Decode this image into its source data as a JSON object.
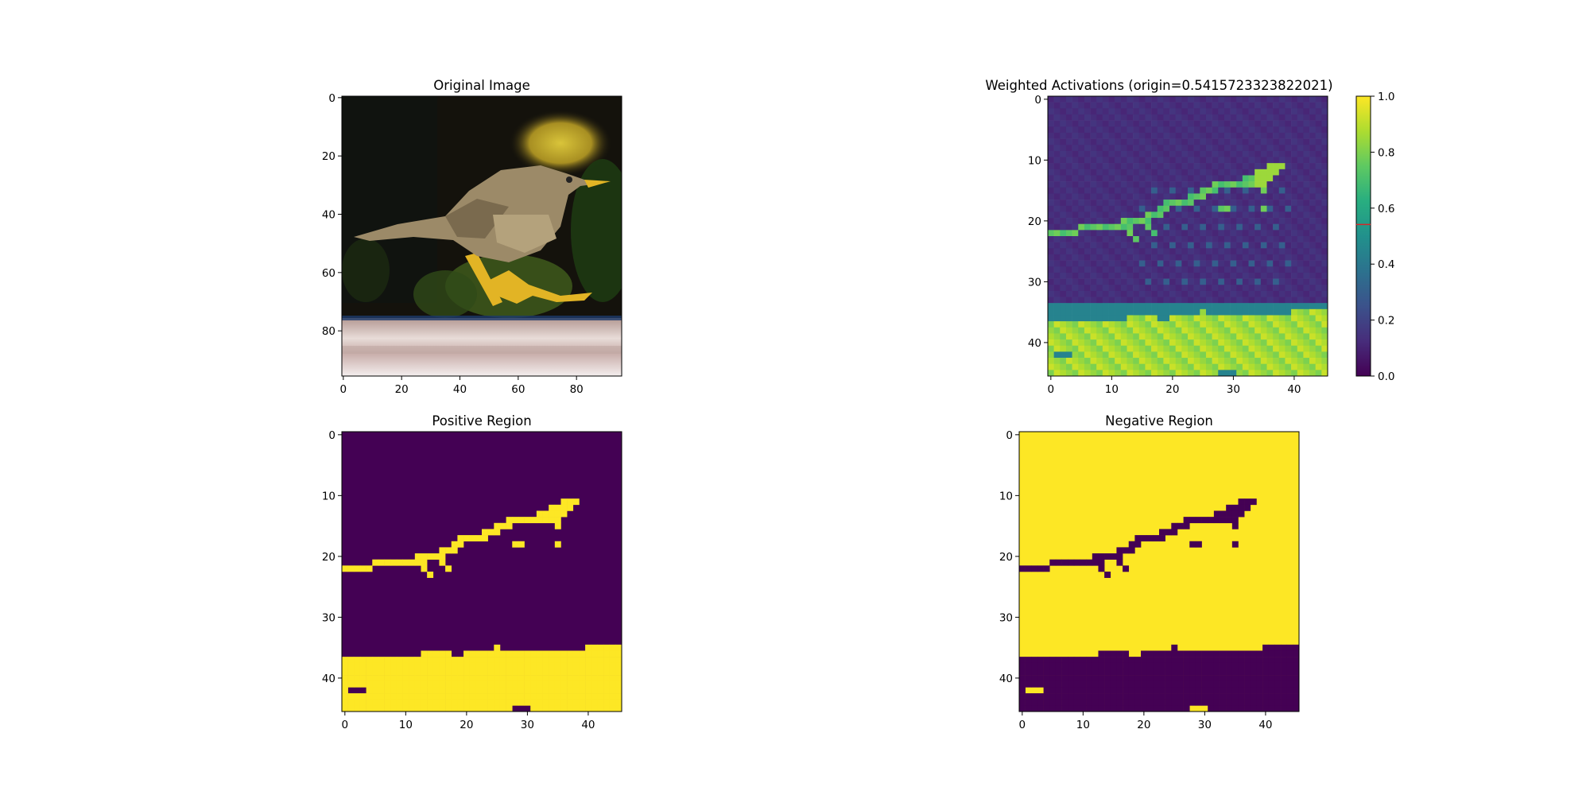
{
  "chart_data": [
    {
      "type": "image",
      "title": "Original Image",
      "xticks": [
        0,
        20,
        40,
        60,
        80
      ],
      "yticks": [
        0,
        20,
        40,
        60,
        80
      ],
      "xlim": [
        -0.5,
        95.5
      ],
      "ylim": [
        95.5,
        -0.5
      ],
      "colors": {
        "background": "#14120c",
        "bokeh": "#c8b42e",
        "foliage": "#3e5a1c",
        "bird": "#9c8a68",
        "legs": "#e2b425",
        "ledge": "#dac9c4"
      }
    },
    {
      "type": "heatmap",
      "title": "Weighted Activations (origin=0.5415723323822021)",
      "xticks": [
        0,
        10,
        20,
        30,
        40
      ],
      "yticks": [
        0,
        10,
        20,
        30,
        40
      ],
      "xlim": [
        -0.5,
        45.5
      ],
      "ylim": [
        45.5,
        -0.5
      ],
      "colormap": "viridis",
      "colorbar": {
        "ticks": [
          "0.0",
          "0.2",
          "0.4",
          "0.6",
          "0.8",
          "1.0"
        ],
        "range": [
          0,
          1
        ],
        "marker_value": 0.5415723323822021,
        "marker_color": "#d62728"
      },
      "levels": {
        "background": 0.13,
        "bird_edge": 0.7,
        "bird_head": 0.85,
        "ledge": 0.92
      }
    },
    {
      "type": "heatmap",
      "title": "Positive Region",
      "xticks": [
        0,
        10,
        20,
        30,
        40
      ],
      "yticks": [
        0,
        10,
        20,
        30,
        40
      ],
      "xlim": [
        -0.5,
        45.5
      ],
      "ylim": [
        45.5,
        -0.5
      ],
      "colors": {
        "off": "#440154",
        "on": "#fde725"
      },
      "ledge_top_row": [
        37,
        37,
        37,
        37,
        37,
        37,
        37,
        37,
        37,
        37,
        37,
        37,
        37,
        36,
        36,
        36,
        36,
        36,
        37,
        37,
        36,
        36,
        36,
        36,
        36,
        35,
        36,
        36,
        36,
        36,
        36,
        36,
        36,
        36,
        36,
        36,
        36,
        36,
        36,
        36,
        35,
        35,
        35,
        35,
        35,
        35
      ],
      "line_segments": [
        [
          22,
          0,
          4
        ],
        [
          21,
          5,
          12
        ],
        [
          20,
          12,
          16
        ],
        [
          19,
          16,
          18
        ],
        [
          18,
          18,
          19
        ],
        [
          17,
          19,
          23
        ],
        [
          16,
          23,
          25
        ],
        [
          15,
          25,
          27
        ],
        [
          14,
          27,
          35
        ],
        [
          13,
          32,
          36
        ],
        [
          12,
          34,
          37
        ],
        [
          11,
          36,
          38
        ]
      ],
      "extra_on": [
        [
          21,
          13
        ],
        [
          22,
          13
        ],
        [
          23,
          14
        ],
        [
          21,
          16
        ],
        [
          22,
          17
        ],
        [
          18,
          28
        ],
        [
          18,
          29
        ],
        [
          18,
          35
        ],
        [
          15,
          35
        ]
      ],
      "holes": [
        [
          42,
          1
        ],
        [
          42,
          2
        ],
        [
          42,
          3
        ],
        [
          45,
          28
        ],
        [
          45,
          29
        ],
        [
          45,
          30
        ]
      ]
    },
    {
      "type": "heatmap",
      "title": "Negative Region",
      "xticks": [
        0,
        10,
        20,
        30,
        40
      ],
      "yticks": [
        0,
        10,
        20,
        30,
        40
      ],
      "xlim": [
        -0.5,
        45.5
      ],
      "ylim": [
        45.5,
        -0.5
      ],
      "colors": {
        "off": "#440154",
        "on": "#fde725"
      },
      "inverse_of": "Positive Region"
    }
  ]
}
